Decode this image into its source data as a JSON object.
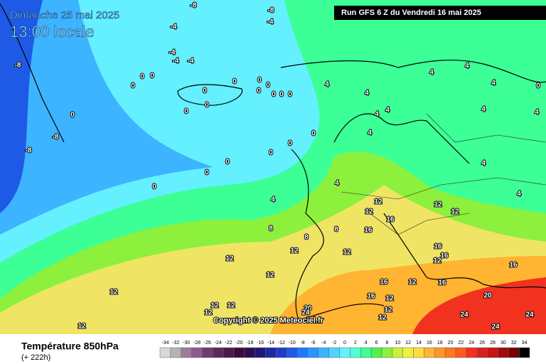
{
  "header": {
    "date": "Dimanche 25 mai 2025",
    "time": "13:00 locale",
    "run": "Run GFS 6 Z du Vendredi 16 mai 2025",
    "copyright": "Copyright © 2025 Meteociel.fr"
  },
  "legend": {
    "title": "Température 850hPa",
    "lead": "(+ 222h)",
    "ticks": [
      -34,
      -32,
      -30,
      -28,
      -26,
      -24,
      -22,
      -20,
      -18,
      -16,
      -14,
      -12,
      -10,
      -8,
      -6,
      -4,
      -2,
      0,
      2,
      4,
      6,
      8,
      10,
      12,
      14,
      16,
      18,
      20,
      22,
      24,
      26,
      28,
      30,
      32,
      34
    ],
    "colors": [
      "#d8d8d8",
      "#b4b4b4",
      "#9c7b9c",
      "#8c5a8c",
      "#6e3c6e",
      "#5a2a5a",
      "#4a1a4a",
      "#3c0a3c",
      "#2a1050",
      "#201878",
      "#1e28a0",
      "#1e3cc8",
      "#1e5ae6",
      "#1e78ff",
      "#2896ff",
      "#3cb4ff",
      "#50d2ff",
      "#64f0ff",
      "#50ffd2",
      "#3cff96",
      "#50f050",
      "#8cf03c",
      "#c8f03c",
      "#f0f03c",
      "#ffdc3c",
      "#ffb432",
      "#ff9628",
      "#ff7820",
      "#ff5a1e",
      "#f0321e",
      "#dc1e1e",
      "#c81414",
      "#a00a0a",
      "#780000",
      "#000000"
    ]
  },
  "isotherm_labels": [
    -8,
    -8,
    -4,
    -4,
    -8,
    -4,
    -4,
    -4,
    0,
    0,
    0,
    0,
    0,
    0,
    0,
    0,
    0,
    0,
    0,
    0,
    0,
    0,
    -8,
    -8,
    0,
    0,
    0,
    0,
    0,
    0,
    4,
    4,
    4,
    4,
    4,
    4,
    4,
    4,
    4,
    4,
    4,
    0,
    4,
    4,
    4,
    8,
    8,
    8,
    12,
    12,
    12,
    12,
    16,
    16,
    12,
    12,
    12,
    12,
    12,
    12,
    12,
    12,
    12,
    16,
    12,
    12,
    12,
    16,
    16,
    16,
    12,
    16,
    20,
    24,
    24,
    24,
    20,
    24,
    16,
    12
  ]
}
